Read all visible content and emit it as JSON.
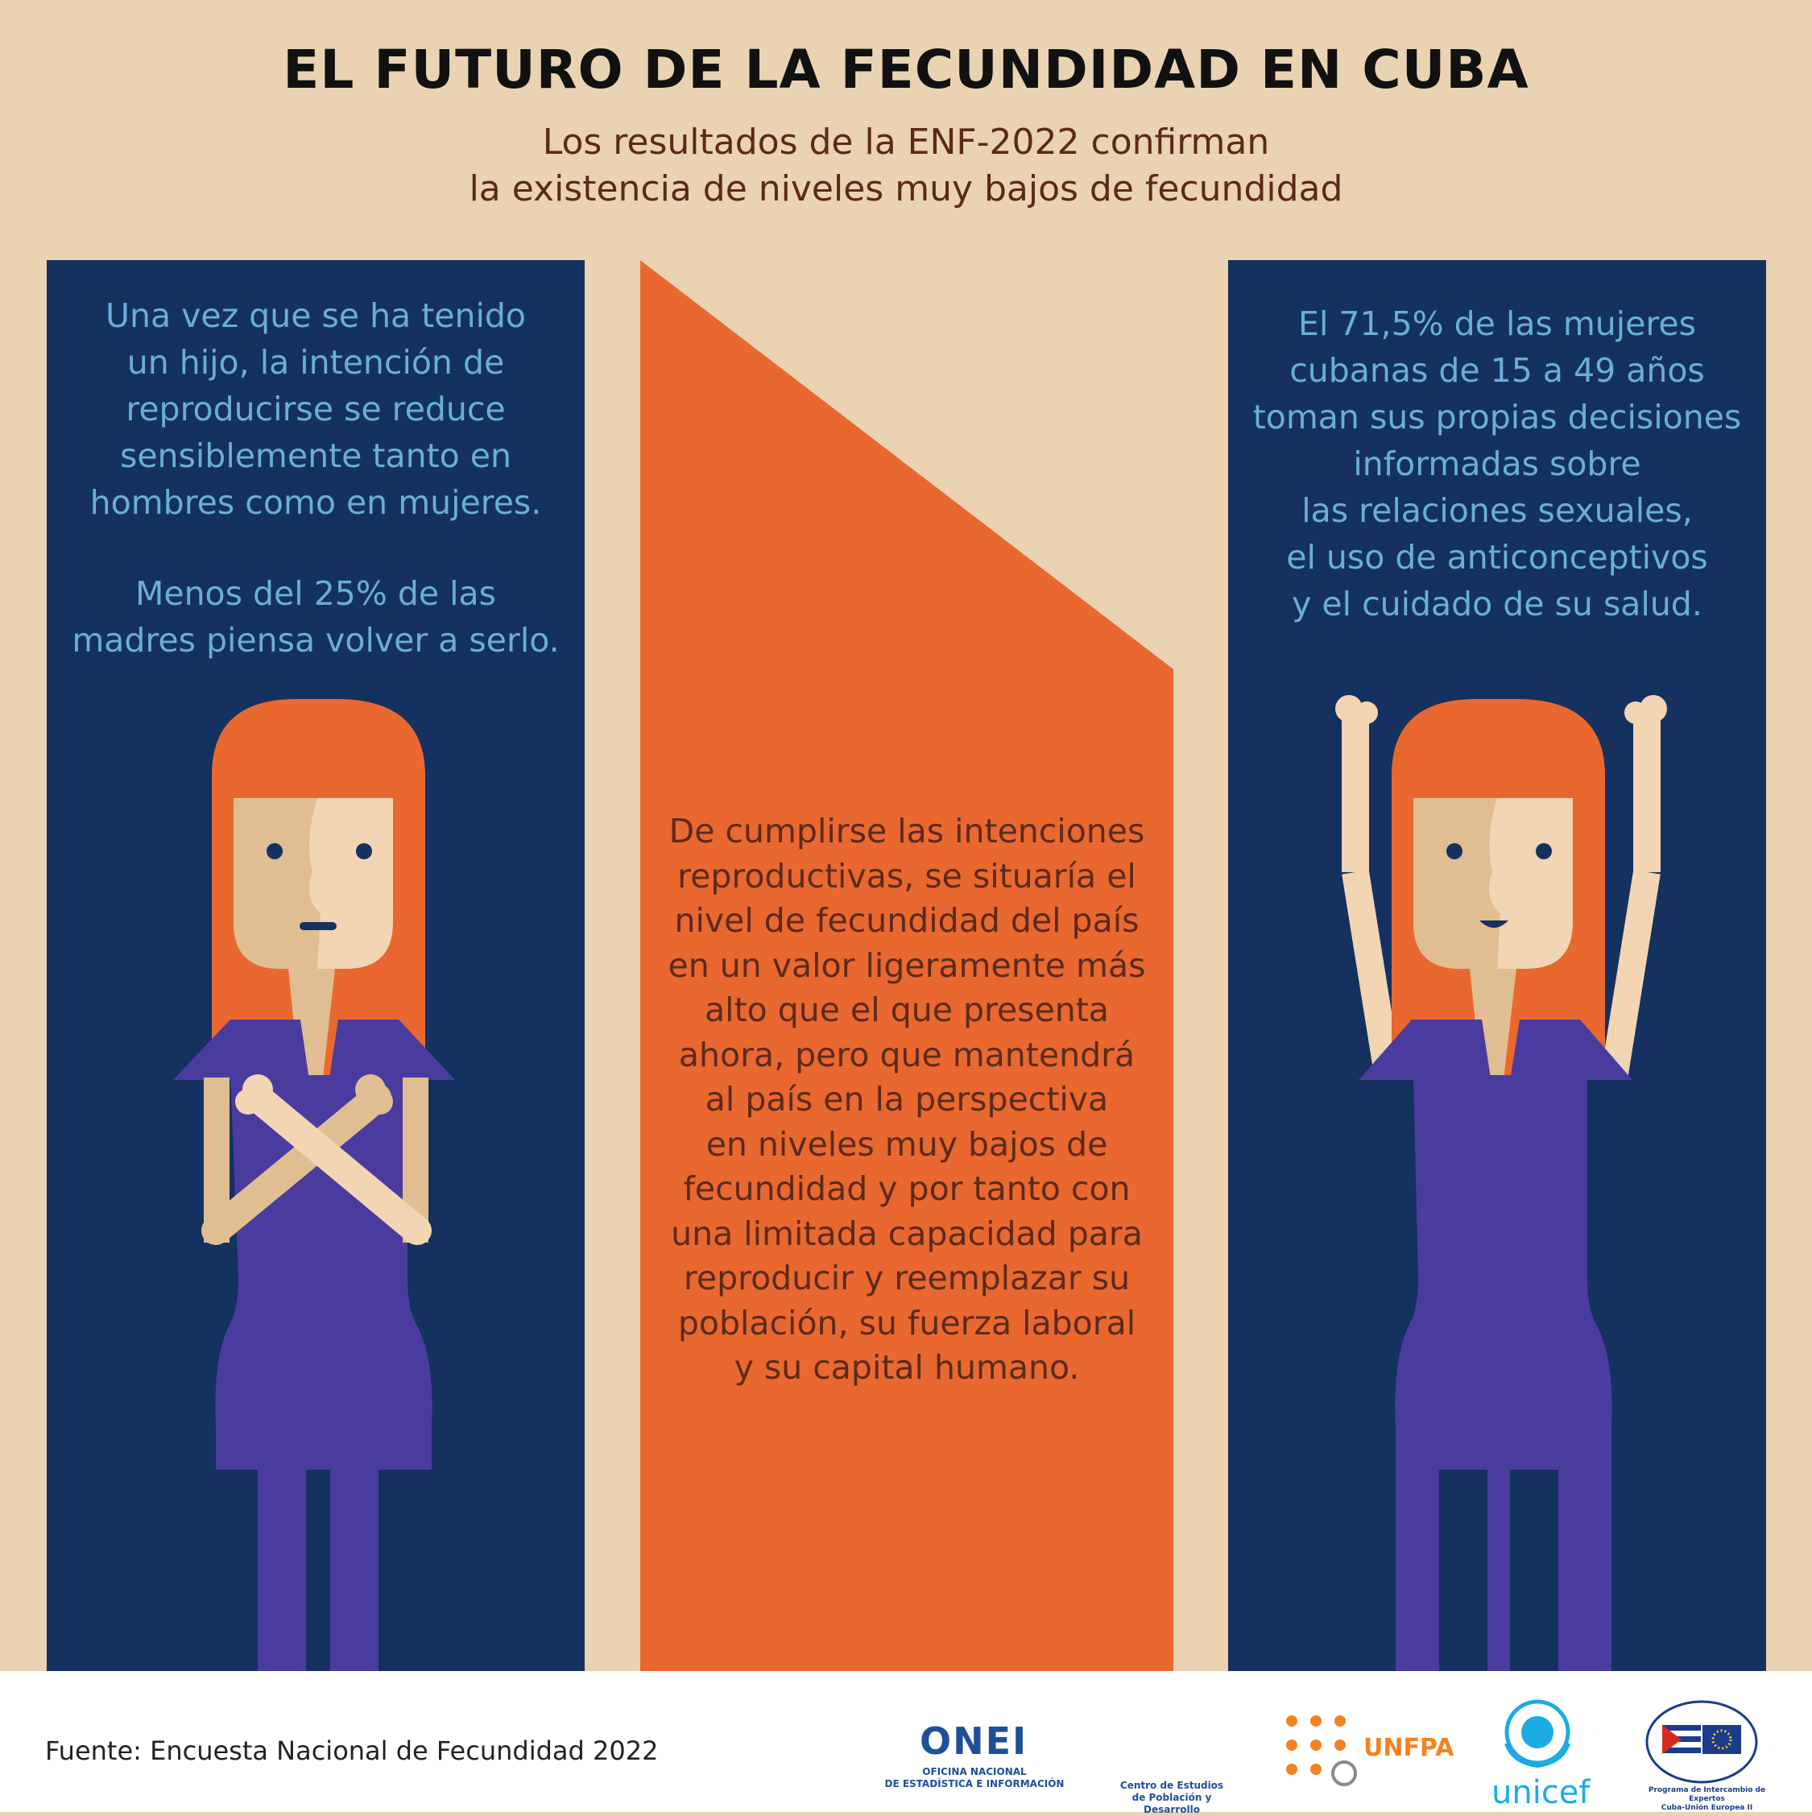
{
  "header": {
    "title": "EL FUTURO DE LA FECUNDIDAD EN CUBA",
    "subtitle_lines": [
      "Los resultados de la ENF-2022 confirman",
      "la existencia de niveles muy bajos de fecundidad"
    ]
  },
  "left_panel": {
    "paragraph1": [
      "Una vez que se ha tenido",
      "un hijo, la intención de",
      "reproducirse se reduce",
      "sensiblemente tanto en",
      "hombres como en mujeres."
    ],
    "paragraph2": [
      "Menos del 25% de las",
      "madres piensa volver a serlo."
    ]
  },
  "center_panel": {
    "lines": [
      "De cumplirse las intenciones",
      "reproductivas, se situaría el",
      "nivel de fecundidad del país",
      "en un valor ligeramente más",
      "alto que el que presenta",
      "ahora, pero que mantendrá",
      "al país en la perspectiva",
      "en niveles muy bajos de",
      "fecundidad y por tanto con",
      "una limitada capacidad para",
      "reproducir y reemplazar su",
      "población, su fuerza laboral",
      "y su capital humano."
    ]
  },
  "right_panel": {
    "lines": [
      "El 71,5% de las mujeres",
      "cubanas de 15 a 49 años",
      "toman sus propias decisiones",
      "informadas sobre",
      "las relaciones sexuales,",
      "el uso de anticonceptivos",
      "y el cuidado de su salud."
    ]
  },
  "footer": {
    "source": "Fuente: Encuesta Nacional de Fecundidad 2022",
    "logos": {
      "onei_name": "ONEI",
      "onei_line1": "OFICINA NACIONAL",
      "onei_line2": "DE ESTADÍSTICA E INFORMACIÓN",
      "cepde_line1": "Centro de Estudios",
      "cepde_line2": "de Población y Desarrollo",
      "unfpa": "UNFPA",
      "unicef": "unicef",
      "pie_line1": "Programa de Intercambio de Expertos",
      "pie_line2": "Cuba-Unión Europea II"
    }
  },
  "colors": {
    "background": "#ead3b2",
    "panel_navy": "#143160",
    "orange": "#e9682f",
    "panel_text_blue": "#6aaed9",
    "center_text_brown": "#5b2a1c",
    "hair": "#e9682f",
    "skin_light": "#f2d5b3",
    "skin_shadow": "#e1be92",
    "shirt_purple": "#4a3c9f"
  },
  "icons": {
    "left_figure": "woman-arms-crossed-icon",
    "right_figure": "woman-arms-raised-icon"
  }
}
